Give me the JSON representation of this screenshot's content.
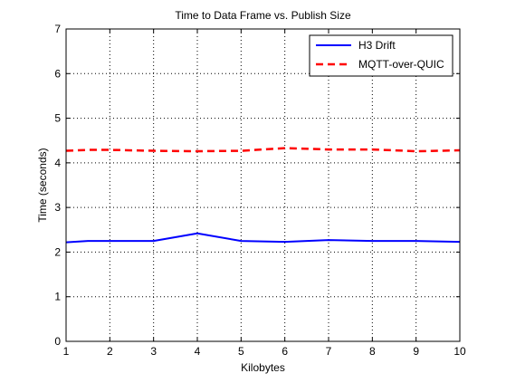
{
  "chart_data": {
    "type": "line",
    "title": "Time to Data Frame vs. Publish Size",
    "xlabel": "Kilobytes",
    "ylabel": "Time (seconds)",
    "xlim": [
      1,
      10
    ],
    "ylim": [
      0,
      7
    ],
    "xticks": [
      1,
      2,
      3,
      4,
      5,
      6,
      7,
      8,
      9,
      10
    ],
    "yticks": [
      0,
      1,
      2,
      3,
      4,
      5,
      6,
      7
    ],
    "grid": true,
    "legend_position": "top-right",
    "series": [
      {
        "name": "H3 Drift",
        "color": "#0000ff",
        "style": "solid",
        "x": [
          1,
          1.5,
          2,
          3,
          4,
          5,
          5.5,
          6,
          7,
          8,
          9,
          10
        ],
        "y": [
          2.22,
          2.25,
          2.25,
          2.25,
          2.42,
          2.25,
          2.24,
          2.23,
          2.27,
          2.25,
          2.25,
          2.23
        ]
      },
      {
        "name": "MQTT-over-QUIC",
        "color": "#ff0000",
        "style": "dashed",
        "x": [
          1,
          1.5,
          2,
          3,
          4,
          5,
          6,
          7,
          8,
          9,
          10
        ],
        "y": [
          4.27,
          4.29,
          4.29,
          4.27,
          4.26,
          4.27,
          4.33,
          4.3,
          4.3,
          4.26,
          4.28
        ]
      }
    ]
  }
}
